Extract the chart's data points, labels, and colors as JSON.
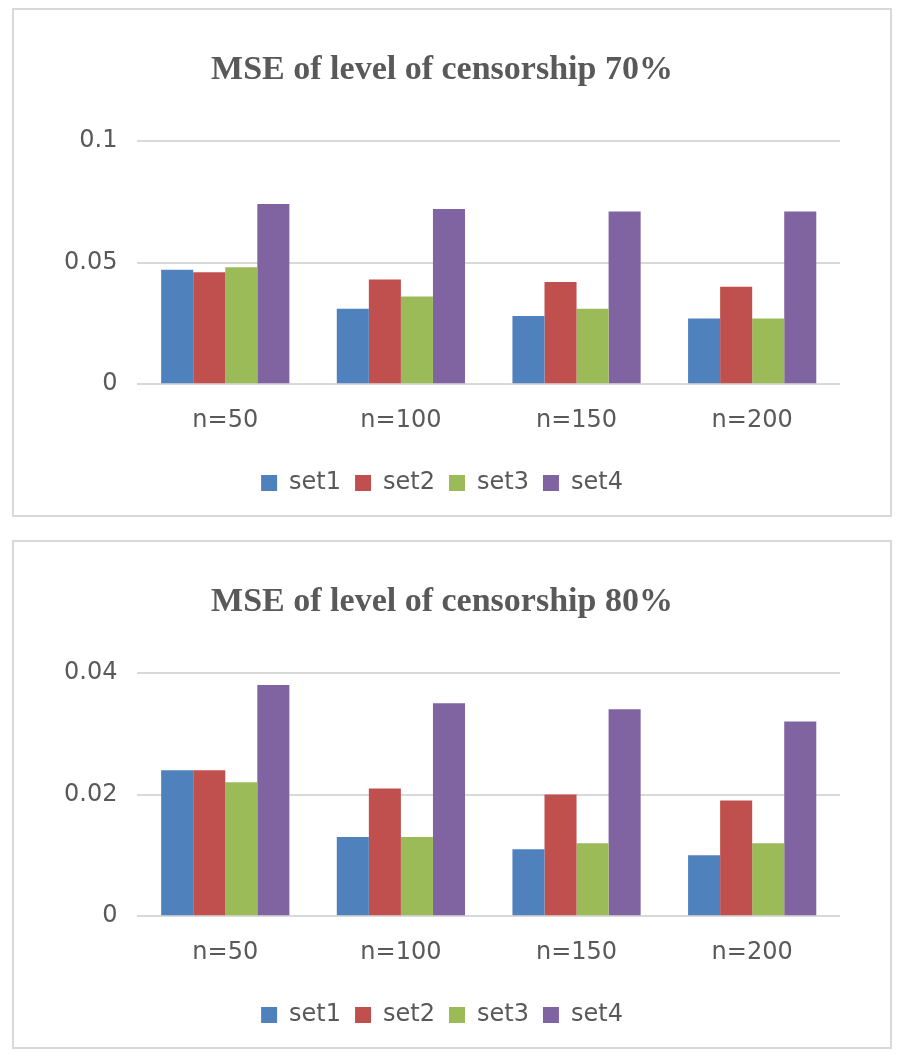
{
  "chart_data": [
    {
      "type": "bar",
      "title": "MSE of level of censorship 70%",
      "categories": [
        "n=50",
        "n=100",
        "n=150",
        "n=200"
      ],
      "series": [
        {
          "name": "set1",
          "color": "#4f81bd",
          "values": [
            0.047,
            0.031,
            0.028,
            0.027
          ]
        },
        {
          "name": "set2",
          "color": "#c0504d",
          "values": [
            0.046,
            0.043,
            0.042,
            0.04
          ]
        },
        {
          "name": "set3",
          "color": "#9bbb59",
          "values": [
            0.048,
            0.036,
            0.031,
            0.027
          ]
        },
        {
          "name": "set4",
          "color": "#8064a2",
          "values": [
            0.074,
            0.072,
            0.071,
            0.071
          ]
        }
      ],
      "ylim": [
        0,
        0.1
      ],
      "yticks": [
        0,
        0.05,
        0.1
      ],
      "grid": "y",
      "legend": "bottom"
    },
    {
      "type": "bar",
      "title": "MSE of level of censorship 80%",
      "categories": [
        "n=50",
        "n=100",
        "n=150",
        "n=200"
      ],
      "series": [
        {
          "name": "set1",
          "color": "#4f81bd",
          "values": [
            0.024,
            0.013,
            0.011,
            0.01
          ]
        },
        {
          "name": "set2",
          "color": "#c0504d",
          "values": [
            0.024,
            0.021,
            0.02,
            0.019
          ]
        },
        {
          "name": "set3",
          "color": "#9bbb59",
          "values": [
            0.022,
            0.013,
            0.012,
            0.012
          ]
        },
        {
          "name": "set4",
          "color": "#8064a2",
          "values": [
            0.038,
            0.035,
            0.034,
            0.032
          ]
        }
      ],
      "ylim": [
        0,
        0.04
      ],
      "yticks": [
        0,
        0.02,
        0.04
      ],
      "grid": "y",
      "legend": "bottom"
    }
  ]
}
